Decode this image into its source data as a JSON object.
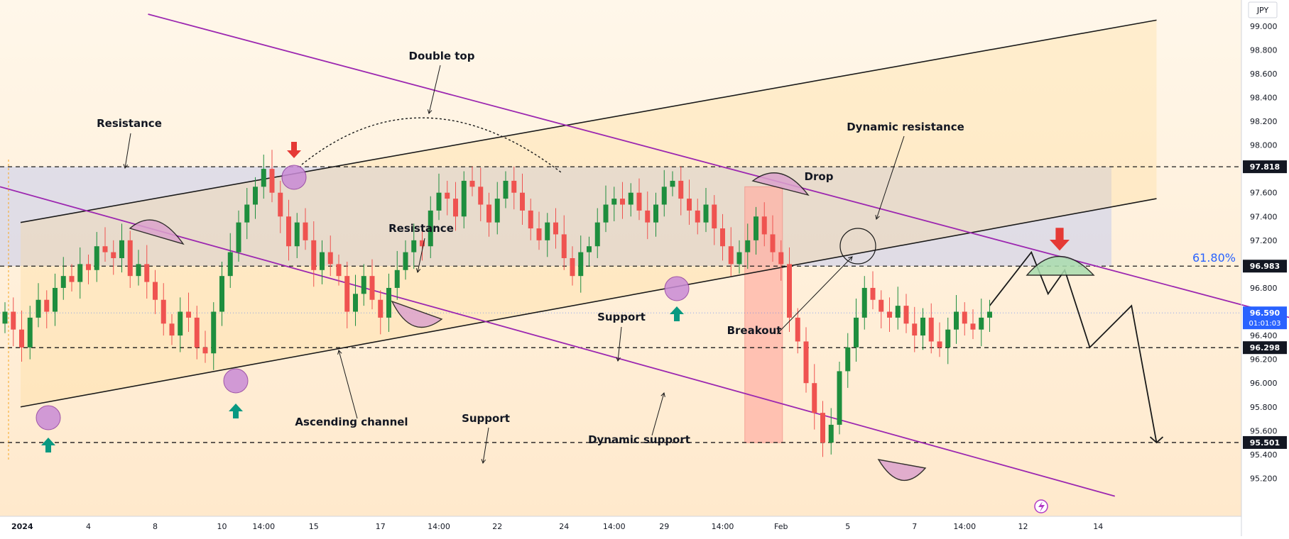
{
  "chart_data": {
    "type": "candlestick",
    "currency_label": "JPY",
    "ylim": [
      95.0,
      99.1
    ],
    "price_ticks": [
      95.2,
      95.4,
      95.6,
      95.8,
      96.0,
      96.2,
      96.4,
      96.6,
      96.8,
      97.0,
      97.2,
      97.4,
      97.6,
      97.8,
      98.0,
      98.2,
      98.4,
      98.6,
      98.8,
      99.0
    ],
    "time_labels": [
      {
        "label": "2024",
        "i": 0
      },
      {
        "label": "4",
        "i": 10
      },
      {
        "label": "8",
        "i": 18
      },
      {
        "label": "10",
        "i": 26
      },
      {
        "label": "14:00",
        "i": 31
      },
      {
        "label": "15",
        "i": 37
      },
      {
        "label": "17",
        "i": 45
      },
      {
        "label": "14:00",
        "i": 52
      },
      {
        "label": "22",
        "i": 59
      },
      {
        "label": "24",
        "i": 67
      },
      {
        "label": "14:00",
        "i": 73
      },
      {
        "label": "29",
        "i": 79
      },
      {
        "label": "14:00",
        "i": 86
      },
      {
        "label": "Feb",
        "i": 93
      },
      {
        "label": "5",
        "i": 101
      },
      {
        "label": "7",
        "i": 109
      },
      {
        "label": "14:00",
        "i": 115
      },
      {
        "label": "12",
        "i": 122
      },
      {
        "label": "14",
        "i": 131
      }
    ],
    "closes": [
      96.6,
      96.45,
      96.3,
      96.55,
      96.7,
      96.6,
      96.8,
      96.9,
      96.85,
      97.0,
      96.95,
      97.15,
      97.1,
      97.05,
      97.2,
      96.9,
      97.0,
      96.85,
      96.7,
      96.5,
      96.4,
      96.6,
      96.55,
      96.3,
      96.25,
      96.6,
      96.9,
      97.1,
      97.35,
      97.5,
      97.65,
      97.8,
      97.6,
      97.4,
      97.15,
      97.35,
      97.2,
      96.95,
      97.1,
      97.0,
      96.9,
      96.6,
      96.75,
      96.9,
      96.7,
      96.55,
      96.8,
      96.95,
      97.1,
      97.2,
      97.15,
      97.45,
      97.6,
      97.55,
      97.4,
      97.7,
      97.65,
      97.5,
      97.35,
      97.55,
      97.7,
      97.6,
      97.45,
      97.3,
      97.2,
      97.35,
      97.25,
      97.05,
      96.9,
      97.1,
      97.15,
      97.35,
      97.5,
      97.55,
      97.5,
      97.6,
      97.45,
      97.35,
      97.5,
      97.65,
      97.7,
      97.55,
      97.45,
      97.35,
      97.5,
      97.3,
      97.15,
      97.0,
      97.1,
      97.2,
      97.4,
      97.25,
      97.1,
      97.0,
      96.55,
      96.35,
      96.0,
      95.75,
      95.5,
      95.65,
      96.1,
      96.3,
      96.55,
      96.8,
      96.7,
      96.6,
      96.55,
      96.65,
      96.5,
      96.4,
      96.55,
      96.35,
      96.3,
      96.45,
      96.6,
      96.5,
      96.45,
      96.55,
      96.6
    ],
    "levels": [
      {
        "label": "97.818",
        "value": 97.818
      },
      {
        "label": "96.983",
        "value": 96.983
      },
      {
        "label": "96.298",
        "value": 96.298
      },
      {
        "label": "95.501",
        "value": 95.501
      }
    ],
    "current_price": {
      "label": "96.590",
      "countdown": "01:01:03",
      "value": 96.59
    },
    "fib": {
      "label": "61.80%",
      "value": 96.983
    },
    "channel": {
      "upper": [
        [
          0,
          97.35
        ],
        [
          138,
          99.05
        ]
      ],
      "lower": [
        [
          0,
          95.8
        ],
        [
          138,
          97.55
        ]
      ]
    },
    "dyn_resistance": [
      [
        18,
        99.1
      ],
      [
        154,
        96.55
      ]
    ],
    "dyn_support": [
      [
        0,
        97.65
      ],
      [
        133,
        95.05
      ]
    ],
    "projection": [
      [
        118,
        96.65
      ],
      [
        123,
        97.1
      ],
      [
        125,
        96.75
      ],
      [
        127,
        96.95
      ],
      [
        130,
        96.3
      ],
      [
        135,
        96.65
      ],
      [
        138,
        95.5
      ]
    ],
    "drop_zone": {
      "i0": 89,
      "i1": 93,
      "top": 97.65,
      "bottom": 95.5
    },
    "annotations": [
      {
        "label": "Double top"
      },
      {
        "label": "Resistance"
      },
      {
        "label": "Resistance"
      },
      {
        "label": "Dynamic resistance"
      },
      {
        "label": "Drop"
      },
      {
        "label": "Support"
      },
      {
        "label": "Breakout"
      },
      {
        "label": "Ascending channel"
      },
      {
        "label": "Support"
      },
      {
        "label": "Dynamic support"
      }
    ],
    "colors": {
      "up": "#26a69a",
      "down": "#ef5350",
      "bull_candle": "#1e8e3e",
      "bear_candle": "#ef5350",
      "channel": "#1a1a1a",
      "dynamic": "#9c27b0",
      "fib": "#2962ff",
      "drop_zone": "#ffb3a7",
      "arrow_up": "#089981",
      "arrow_down": "#e53935"
    }
  }
}
